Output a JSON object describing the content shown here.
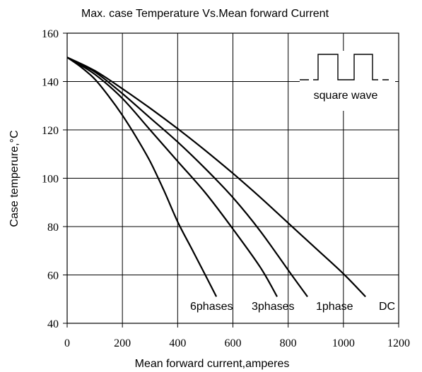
{
  "chart_data": {
    "type": "line",
    "title": "Max. case Temperature Vs.Mean forward Current",
    "xlabel": "Mean forward current,amperes",
    "ylabel": "Case temperure,°C",
    "xlim": [
      0,
      1200
    ],
    "ylim": [
      40,
      160
    ],
    "xticks": [
      "0",
      "200",
      "400",
      "600",
      "800",
      "1000",
      "1200"
    ],
    "yticks": [
      "40",
      "60",
      "80",
      "100",
      "120",
      "140",
      "160"
    ],
    "grid": true,
    "inset_label": "square wave",
    "series": [
      {
        "name": "6phases",
        "x": [
          0,
          50,
          100,
          150,
          200,
          250,
          300,
          350,
          400,
          450,
          500,
          540
        ],
        "y": [
          150,
          146,
          141,
          134,
          126,
          117,
          107,
          95,
          82,
          71,
          60,
          51
        ]
      },
      {
        "name": "3phases",
        "x": [
          0,
          100,
          200,
          300,
          400,
          500,
          600,
          700,
          760
        ],
        "y": [
          150,
          143,
          133,
          120,
          107,
          94,
          79,
          63,
          51
        ]
      },
      {
        "name": "1phase",
        "x": [
          0,
          100,
          200,
          300,
          400,
          500,
          600,
          700,
          800,
          870
        ],
        "y": [
          150,
          144,
          135,
          125,
          115,
          104,
          92,
          78,
          62,
          51
        ]
      },
      {
        "name": "DC",
        "x": [
          0,
          100,
          200,
          300,
          400,
          500,
          600,
          700,
          800,
          900,
          1000,
          1080
        ],
        "y": [
          150,
          144.5,
          137,
          129,
          120.5,
          111.5,
          102,
          92,
          81.5,
          71,
          60.5,
          51
        ]
      }
    ]
  }
}
